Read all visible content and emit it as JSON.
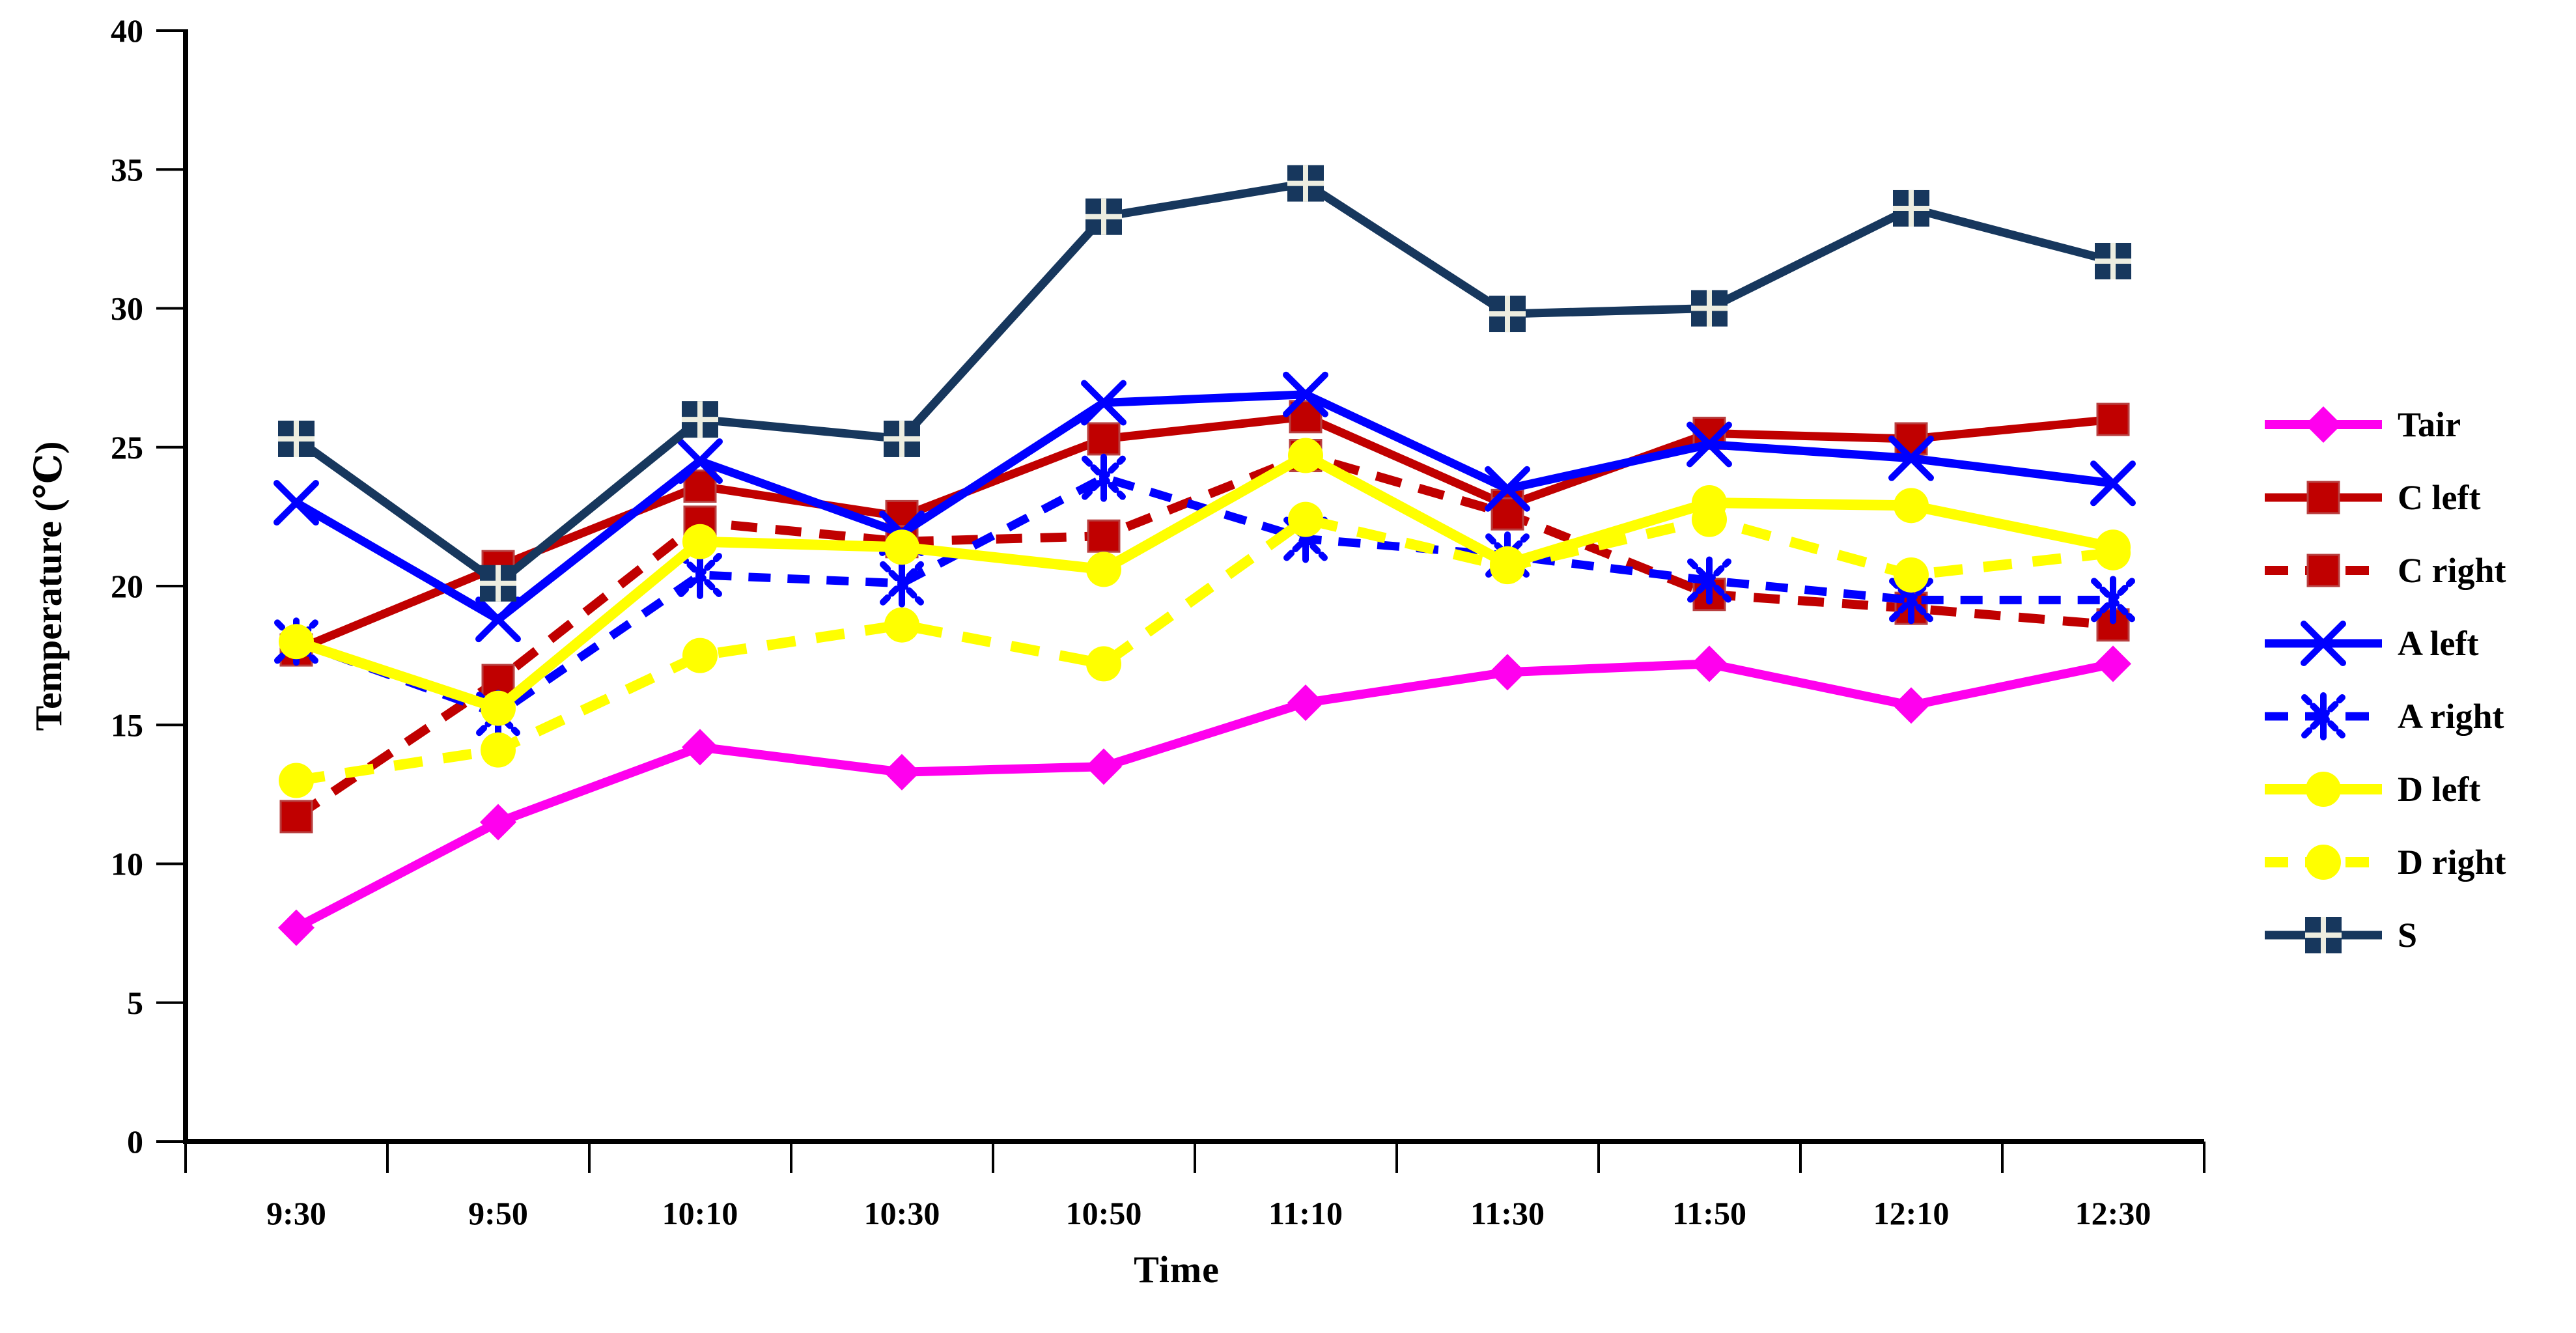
{
  "chart_data": {
    "type": "line",
    "title": "",
    "xlabel": "Time",
    "ylabel": "Temperature (℃)",
    "ylim": [
      0,
      40
    ],
    "y_tick_step": 5,
    "y_ticks": [
      0,
      5,
      10,
      15,
      20,
      25,
      30,
      35,
      40
    ],
    "grid": false,
    "legend_position": "right",
    "categories": [
      "9:30",
      "9:50",
      "10:10",
      "10:30",
      "10:50",
      "11:10",
      "11:30",
      "11:50",
      "12:10",
      "12:30"
    ],
    "series": [
      {
        "name": "Tair",
        "color": "#FF00EE",
        "line": "solid",
        "marker": "diamond",
        "values": [
          7.7,
          11.5,
          14.2,
          13.3,
          13.5,
          15.8,
          16.9,
          17.2,
          15.7,
          17.2
        ]
      },
      {
        "name": "C left",
        "color": "#C00000",
        "line": "solid",
        "marker": "square",
        "values": [
          17.7,
          20.7,
          23.6,
          22.5,
          25.3,
          26.1,
          22.9,
          25.5,
          25.3,
          26.0
        ]
      },
      {
        "name": "C right",
        "color": "#C00000",
        "line": "dashed",
        "marker": "square",
        "values": [
          11.7,
          16.6,
          22.3,
          21.6,
          21.8,
          24.7,
          22.6,
          19.7,
          19.2,
          18.6
        ]
      },
      {
        "name": "A left",
        "color": "#0000FF",
        "line": "solid",
        "marker": "x",
        "values": [
          23.0,
          18.8,
          24.5,
          21.9,
          26.6,
          26.9,
          23.5,
          25.1,
          24.6,
          23.7
        ]
      },
      {
        "name": "A right",
        "color": "#0000FF",
        "line": "dashed",
        "marker": "asterisk",
        "values": [
          18.0,
          15.4,
          20.4,
          20.1,
          23.9,
          21.7,
          21.1,
          20.2,
          19.5,
          19.5
        ]
      },
      {
        "name": "D left",
        "color": "#FFFF00",
        "line": "solid",
        "marker": "circle",
        "values": [
          18.0,
          15.6,
          21.6,
          21.4,
          20.6,
          24.7,
          20.8,
          23.0,
          22.9,
          21.4
        ]
      },
      {
        "name": "D right",
        "color": "#FFFF00",
        "line": "dashed",
        "marker": "circle",
        "values": [
          13.0,
          14.1,
          17.5,
          18.6,
          17.2,
          22.4,
          20.7,
          22.4,
          20.4,
          21.2
        ]
      },
      {
        "name": "S",
        "color": "#17375D",
        "line": "solid",
        "marker": "square-plus",
        "values": [
          25.3,
          20.1,
          26.0,
          25.3,
          33.3,
          34.5,
          29.8,
          30.0,
          33.6,
          31.7
        ]
      }
    ],
    "axis_color": "#000000",
    "marker_plus_color": "#EDEDE0"
  }
}
